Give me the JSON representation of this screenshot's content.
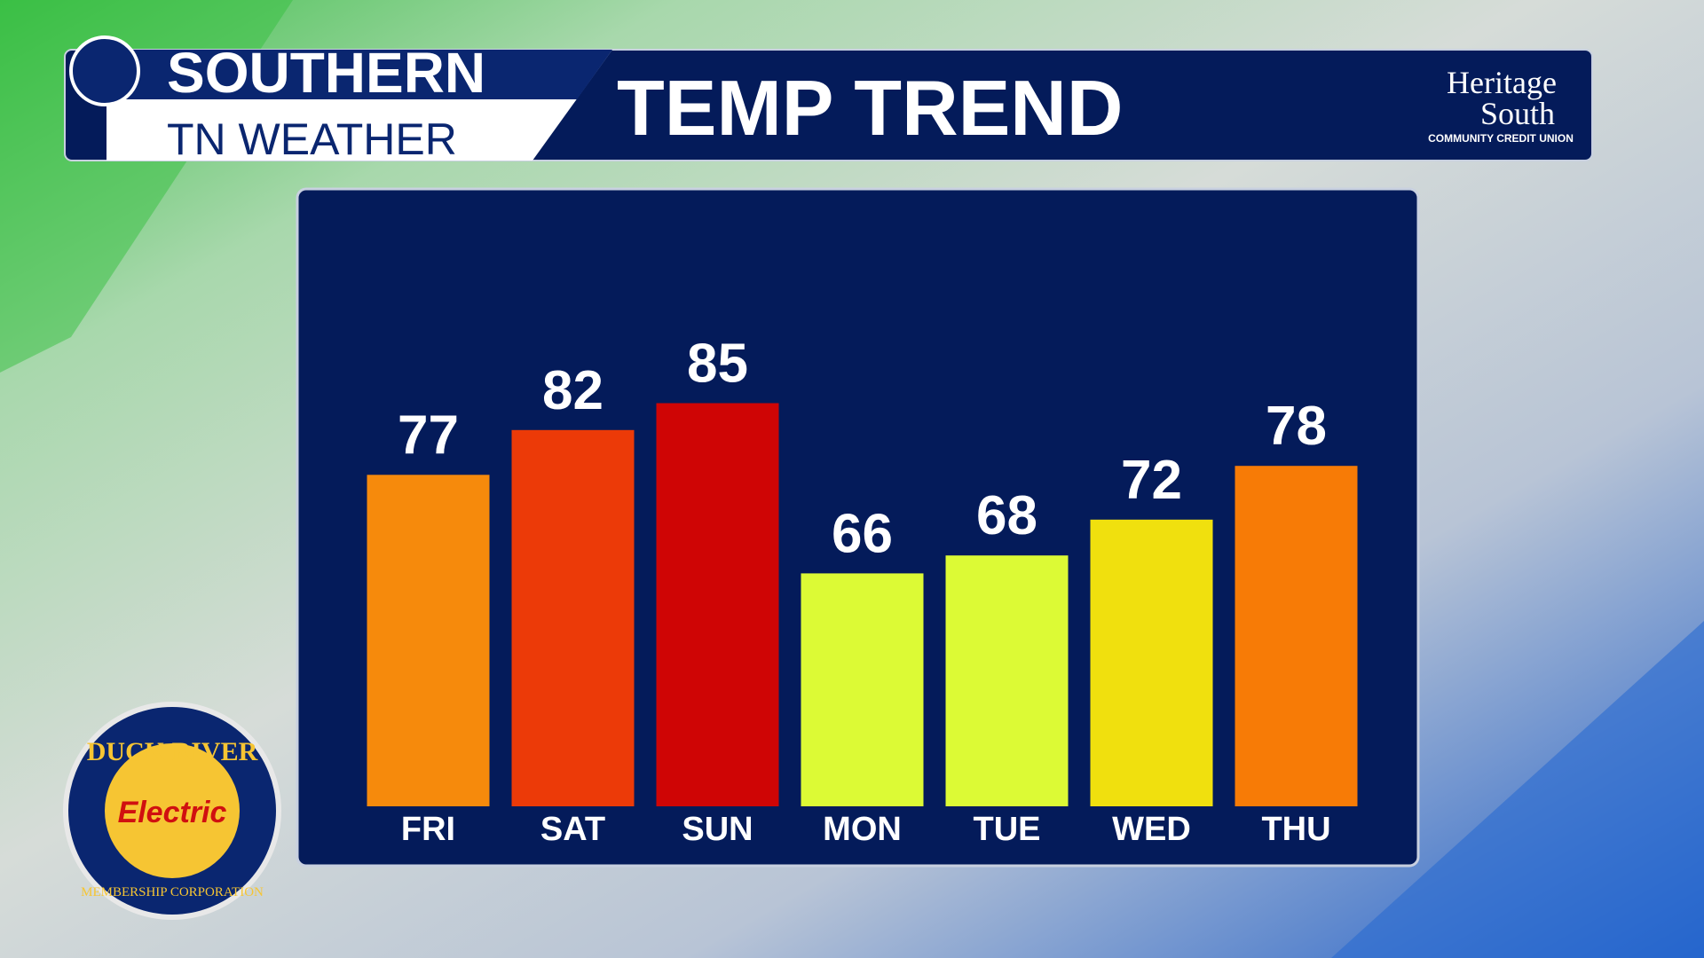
{
  "chart_data": {
    "type": "bar",
    "title": "TEMP TREND",
    "categories": [
      "FRI",
      "SAT",
      "SUN",
      "MON",
      "TUE",
      "WED",
      "THU"
    ],
    "values": [
      77,
      82,
      85,
      66,
      68,
      72,
      78
    ],
    "colors": [
      "#f68a0c",
      "#ec3a08",
      "#cf0505",
      "#dcfa35",
      "#dcfa35",
      "#f0e00e",
      "#f77b06"
    ],
    "ylim": [
      40,
      100
    ]
  },
  "branding": {
    "show_top": "SOUTHERN",
    "show_bottom": "TN WEATHER",
    "sponsor_top_1": "Heritage",
    "sponsor_top_2": "South",
    "sponsor_top_3": "COMMUNITY CREDIT UNION",
    "sponsor_bottom_1": "DUCK RIVER",
    "sponsor_bottom_2": "Electric",
    "sponsor_bottom_3": "MEMBERSHIP CORPORATION"
  }
}
